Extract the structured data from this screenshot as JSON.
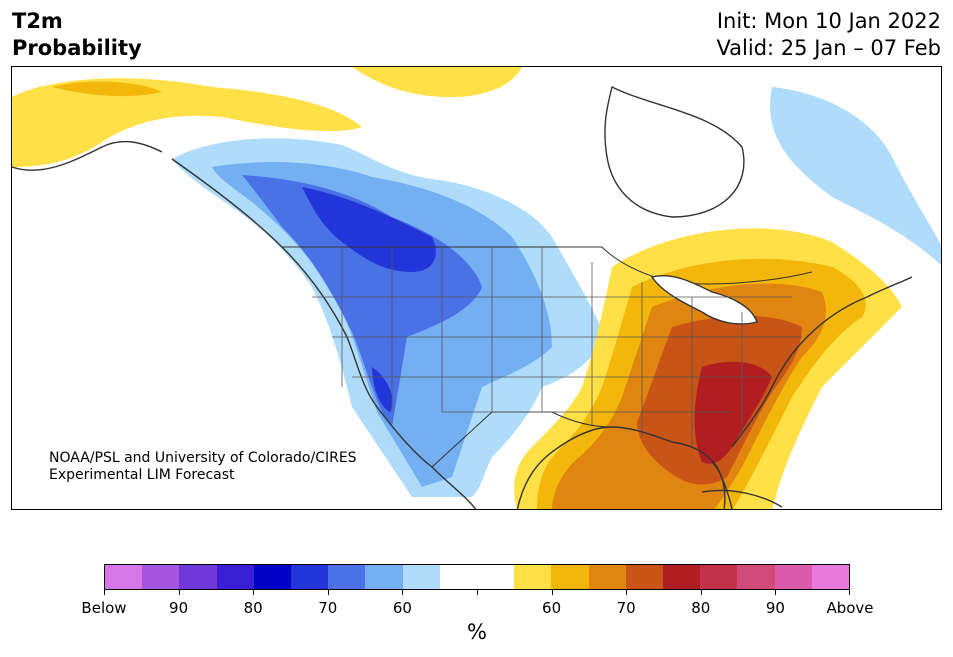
{
  "header": {
    "variable": "T2m",
    "product": "Probability",
    "init": "Init: Mon 10 Jan 2022",
    "valid": "Valid: 25 Jan – 07 Feb"
  },
  "credit": {
    "line1": "NOAA/PSL and University of Colorado/CIRES",
    "line2": "Experimental LIM Forecast"
  },
  "colorbar": {
    "colors": [
      "#d676e8",
      "#a655e0",
      "#7038d8",
      "#3a1ed4",
      "#0000c8",
      "#2235d8",
      "#4a72e6",
      "#74aff2",
      "#aedcfa",
      "#ffffff",
      "#ffffff",
      "#ffe046",
      "#f2b70a",
      "#e08510",
      "#c85418",
      "#b01e22",
      "#c23248",
      "#d04a7a",
      "#da5aad",
      "#e87adc"
    ],
    "labels": [
      "Below",
      "90",
      "80",
      "70",
      "60",
      "",
      "60",
      "70",
      "80",
      "90",
      "Above"
    ],
    "unit": "%"
  },
  "map": {
    "region": "North America",
    "land_color": "#ffffff",
    "border_color": "#333333"
  }
}
